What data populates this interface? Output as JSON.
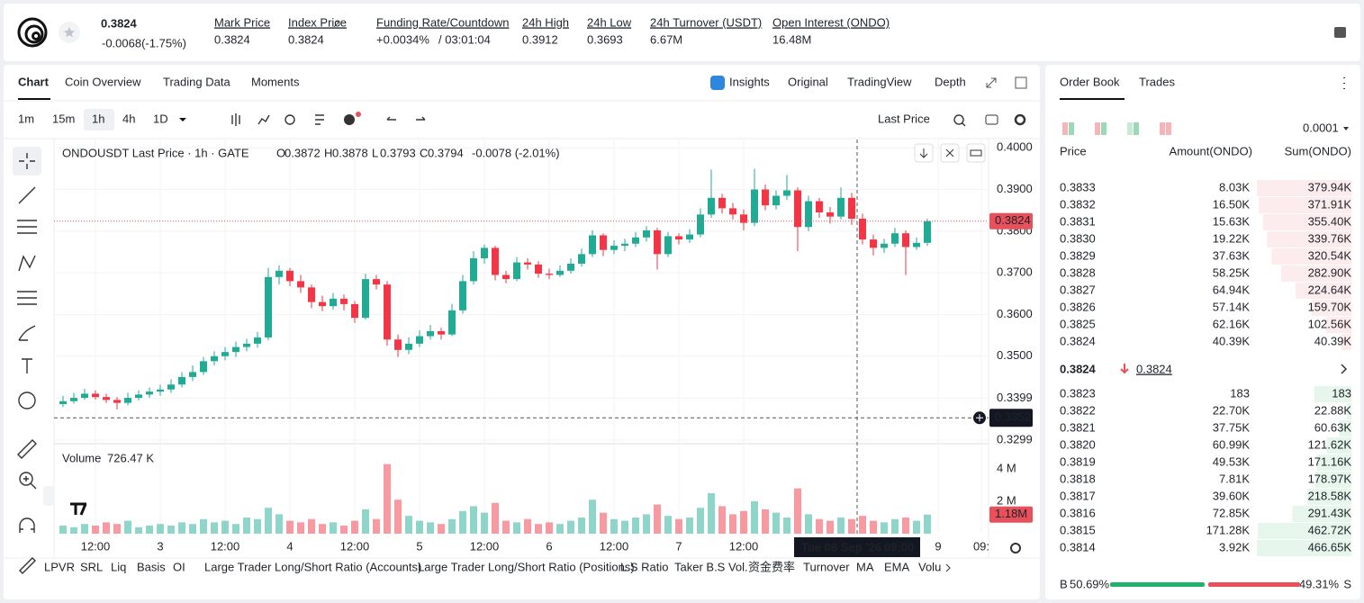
{
  "header": {
    "price": "0.3824",
    "change": "-0.0068(-1.75%)",
    "stats": [
      {
        "label": "Mark Price",
        "value": "0.3824"
      },
      {
        "label": "Index Price",
        "value": "0.3824"
      },
      {
        "label": "Funding Rate/Countdown",
        "value": "+0.0034%",
        "value2": "/ 03:01:04"
      },
      {
        "label": "24h High",
        "value": "0.3912"
      },
      {
        "label": "24h Low",
        "value": "0.3693"
      },
      {
        "label": "24h Turnover (USDT)",
        "value": "6.67M"
      },
      {
        "label": "Open Interest (ONDO)",
        "value": "16.48M"
      }
    ]
  },
  "tabs": {
    "left": [
      "Chart",
      "Coin Overview",
      "Trading Data",
      "Moments"
    ],
    "right": [
      "Insights",
      "Original",
      "TradingView",
      "Depth"
    ]
  },
  "toolbar": {
    "intervals": [
      "1m",
      "15m",
      "1h",
      "4h",
      "1D"
    ],
    "price_type": "Last Price"
  },
  "indicators": [
    "LPVR",
    "SRL",
    "Liq",
    "Basis",
    "OI",
    "Large Trader Long/Short Ratio (Accounts)",
    "Large Trader Long/Short Ratio (Positions)",
    "L.S Ratio",
    "Taker B.S Vol.",
    "资金费率",
    "Turnover",
    "MA",
    "EMA",
    "Volu"
  ],
  "chart_data": {
    "type": "candlestick",
    "title": "ONDOUSDT Last Price · 1h · GATE",
    "legend": [
      {
        "key": "O",
        "value": "0.3872"
      },
      {
        "key": "H",
        "value": "0.3878"
      },
      {
        "key": "L",
        "value": "0.3793"
      },
      {
        "key": "C",
        "value": "0.3794"
      }
    ],
    "legend_change": "-0.0078 (-2.01%)",
    "up_color": "#22ab94",
    "down_color": "#f23645",
    "ylim": [
      0.329,
      0.402
    ],
    "yticks": [
      {
        "value": 0.4,
        "label": "0.4000"
      },
      {
        "value": 0.39,
        "label": "0.3900"
      },
      {
        "value": 0.38,
        "label": "0.3800"
      },
      {
        "value": 0.37,
        "label": "0.3700"
      },
      {
        "value": 0.36,
        "label": "0.3600"
      },
      {
        "value": 0.35,
        "label": "0.3500"
      },
      0.3399,
      0.3299
    ],
    "xticks": [
      {
        "value": 3,
        "label": "12:00"
      },
      {
        "value": 9,
        "label": "3"
      },
      {
        "value": 15,
        "label": "12:00"
      },
      {
        "value": 21,
        "label": "4"
      },
      {
        "value": 27,
        "label": "12:00"
      },
      {
        "value": 33,
        "label": "5"
      },
      {
        "value": 39,
        "label": "12:00"
      },
      {
        "value": 45,
        "label": "6"
      },
      {
        "value": 51,
        "label": "12:00"
      },
      {
        "value": 57,
        "label": "7"
      },
      {
        "value": 63,
        "label": "12:00"
      },
      {
        "value": 81,
        "label": "9"
      },
      {
        "value": 85,
        "label": "09:"
      }
    ],
    "last_price": 0.3824,
    "crosshair": {
      "x": 73.5,
      "date": "Tue 08 Sep '26",
      "time": "09:00",
      "price": 0.3352
    },
    "volume_title": "Volume",
    "volume_legend": "726.47 K",
    "vlim": [
      0,
      5.5
    ],
    "vticks": [
      {
        "value": 4,
        "label": "4 M"
      },
      {
        "value": 2,
        "label": "2 M"
      }
    ],
    "volume_last": {
      "value": 1.18,
      "label": "1.18M"
    },
    "candles": [
      [
        0.3385,
        0.3405,
        0.3378,
        0.3392
      ],
      [
        0.3392,
        0.3412,
        0.3386,
        0.34
      ],
      [
        0.34,
        0.3422,
        0.3395,
        0.341
      ],
      [
        0.341,
        0.3418,
        0.3396,
        0.3402
      ],
      [
        0.3402,
        0.341,
        0.3388,
        0.3395
      ],
      [
        0.3395,
        0.3402,
        0.3372,
        0.3388
      ],
      [
        0.3388,
        0.3412,
        0.3382,
        0.34
      ],
      [
        0.34,
        0.3418,
        0.3394,
        0.3408
      ],
      [
        0.3408,
        0.3425,
        0.34,
        0.3415
      ],
      [
        0.3415,
        0.3432,
        0.3405,
        0.342
      ],
      [
        0.342,
        0.3445,
        0.3412,
        0.3432
      ],
      [
        0.3432,
        0.3462,
        0.3425,
        0.345
      ],
      [
        0.345,
        0.3478,
        0.344,
        0.3462
      ],
      [
        0.3462,
        0.3498,
        0.3455,
        0.3488
      ],
      [
        0.3488,
        0.3512,
        0.3478,
        0.35
      ],
      [
        0.35,
        0.3522,
        0.349,
        0.351
      ],
      [
        0.351,
        0.3535,
        0.3498,
        0.3522
      ],
      [
        0.3522,
        0.3542,
        0.3512,
        0.353
      ],
      [
        0.353,
        0.3558,
        0.352,
        0.3545
      ],
      [
        0.3545,
        0.3712,
        0.3538,
        0.369
      ],
      [
        0.369,
        0.3718,
        0.3672,
        0.3705
      ],
      [
        0.3705,
        0.3712,
        0.3668,
        0.368
      ],
      [
        0.368,
        0.3695,
        0.3652,
        0.3665
      ],
      [
        0.3665,
        0.3672,
        0.3615,
        0.363
      ],
      [
        0.363,
        0.3645,
        0.3608,
        0.362
      ],
      [
        0.362,
        0.3652,
        0.3612,
        0.3638
      ],
      [
        0.3638,
        0.3648,
        0.361,
        0.3625
      ],
      [
        0.3625,
        0.3632,
        0.358,
        0.3592
      ],
      [
        0.3592,
        0.3698,
        0.3588,
        0.3685
      ],
      [
        0.3685,
        0.3695,
        0.366,
        0.3672
      ],
      [
        0.3672,
        0.368,
        0.3525,
        0.354
      ],
      [
        0.354,
        0.3552,
        0.3498,
        0.3515
      ],
      [
        0.3515,
        0.3545,
        0.3505,
        0.353
      ],
      [
        0.353,
        0.3562,
        0.3522,
        0.3548
      ],
      [
        0.3548,
        0.3575,
        0.354,
        0.356
      ],
      [
        0.356,
        0.3568,
        0.354,
        0.3552
      ],
      [
        0.3552,
        0.3625,
        0.3548,
        0.361
      ],
      [
        0.361,
        0.3695,
        0.3602,
        0.368
      ],
      [
        0.368,
        0.3752,
        0.3672,
        0.3735
      ],
      [
        0.3735,
        0.3768,
        0.3722,
        0.376
      ],
      [
        0.376,
        0.3765,
        0.3682,
        0.3695
      ],
      [
        0.3695,
        0.3705,
        0.3675,
        0.3685
      ],
      [
        0.3685,
        0.3738,
        0.368,
        0.3725
      ],
      [
        0.3725,
        0.3735,
        0.3708,
        0.372
      ],
      [
        0.372,
        0.3728,
        0.3688,
        0.3698
      ],
      [
        0.3698,
        0.371,
        0.3685,
        0.3695
      ],
      [
        0.3695,
        0.3718,
        0.369,
        0.3705
      ],
      [
        0.3705,
        0.3735,
        0.3698,
        0.3722
      ],
      [
        0.3722,
        0.3758,
        0.3715,
        0.3745
      ],
      [
        0.3745,
        0.3802,
        0.3738,
        0.379
      ],
      [
        0.379,
        0.3795,
        0.374,
        0.3755
      ],
      [
        0.3755,
        0.3778,
        0.3745,
        0.3765
      ],
      [
        0.3765,
        0.3782,
        0.3752,
        0.377
      ],
      [
        0.377,
        0.3798,
        0.3762,
        0.3785
      ],
      [
        0.3785,
        0.3812,
        0.3775,
        0.3802
      ],
      [
        0.3802,
        0.3808,
        0.3708,
        0.3745
      ],
      [
        0.3745,
        0.3798,
        0.3738,
        0.3788
      ],
      [
        0.3788,
        0.3795,
        0.3768,
        0.378
      ],
      [
        0.378,
        0.3805,
        0.3772,
        0.3792
      ],
      [
        0.3792,
        0.3855,
        0.3785,
        0.384
      ],
      [
        0.384,
        0.3948,
        0.3832,
        0.388
      ],
      [
        0.388,
        0.389,
        0.3842,
        0.3855
      ],
      [
        0.3855,
        0.3868,
        0.3828,
        0.384
      ],
      [
        0.384,
        0.3852,
        0.3802,
        0.382
      ],
      [
        0.382,
        0.395,
        0.3812,
        0.39
      ],
      [
        0.39,
        0.3912,
        0.385,
        0.3862
      ],
      [
        0.3862,
        0.3898,
        0.3852,
        0.3885
      ],
      [
        0.3885,
        0.3935,
        0.3875,
        0.3898
      ],
      [
        0.3898,
        0.3905,
        0.3752,
        0.381
      ],
      [
        0.381,
        0.3885,
        0.38,
        0.3872
      ],
      [
        0.3872,
        0.388,
        0.3832,
        0.3845
      ],
      [
        0.3845,
        0.3858,
        0.3818,
        0.3835
      ],
      [
        0.3835,
        0.3905,
        0.3828,
        0.388
      ],
      [
        0.388,
        0.3892,
        0.3815,
        0.383
      ],
      [
        0.383,
        0.3842,
        0.3768,
        0.378
      ],
      [
        0.378,
        0.3792,
        0.3742,
        0.376
      ],
      [
        0.376,
        0.3782,
        0.3748,
        0.377
      ],
      [
        0.377,
        0.3808,
        0.3762,
        0.3795
      ],
      [
        0.3795,
        0.3802,
        0.3695,
        0.3762
      ],
      [
        0.3762,
        0.3785,
        0.3755,
        0.3772
      ],
      [
        0.3772,
        0.383,
        0.3765,
        0.3824
      ]
    ],
    "volumes": [
      0.5,
      0.4,
      0.6,
      0.5,
      0.7,
      0.6,
      0.8,
      0.4,
      0.5,
      0.6,
      0.5,
      0.7,
      0.6,
      0.9,
      0.7,
      0.8,
      0.6,
      1.0,
      0.9,
      1.6,
      1.2,
      0.8,
      0.7,
      0.9,
      0.6,
      0.7,
      0.5,
      0.8,
      1.5,
      0.9,
      4.3,
      2.1,
      1.1,
      0.8,
      0.7,
      0.6,
      0.9,
      1.4,
      1.7,
      1.3,
      1.9,
      0.8,
      0.7,
      0.9,
      0.6,
      0.7,
      0.6,
      0.8,
      1.0,
      2.1,
      1.3,
      0.9,
      0.8,
      1.0,
      1.2,
      1.8,
      1.1,
      0.9,
      1.0,
      1.6,
      2.5,
      1.7,
      1.2,
      1.4,
      2.0,
      1.5,
      1.3,
      1.0,
      2.8,
      1.2,
      0.9,
      0.8,
      1.0,
      0.9,
      1.1,
      0.8,
      0.7,
      0.9,
      1.0,
      0.8,
      1.18
    ]
  },
  "order_book": {
    "tabs": [
      "Order Book",
      "Trades"
    ],
    "precision": "0.0001",
    "columns": [
      "Price",
      "Amount(ONDO)",
      "Sum(ONDO)"
    ],
    "asks": [
      [
        "0.3833",
        "8.03K",
        "379.94K"
      ],
      [
        "0.3832",
        "16.50K",
        "371.91K"
      ],
      [
        "0.3831",
        "15.63K",
        "355.40K"
      ],
      [
        "0.3830",
        "19.22K",
        "339.76K"
      ],
      [
        "0.3829",
        "37.63K",
        "320.54K"
      ],
      [
        "0.3828",
        "58.25K",
        "282.90K"
      ],
      [
        "0.3827",
        "64.94K",
        "224.64K"
      ],
      [
        "0.3826",
        "57.14K",
        "159.70K"
      ],
      [
        "0.3825",
        "62.16K",
        "102.56K"
      ],
      [
        "0.3824",
        "40.39K",
        "40.39K"
      ]
    ],
    "last": "0.3824",
    "mark": "0.3824",
    "bids": [
      [
        "0.3823",
        "183",
        "183"
      ],
      [
        "0.3822",
        "22.70K",
        "22.88K"
      ],
      [
        "0.3821",
        "37.75K",
        "60.63K"
      ],
      [
        "0.3820",
        "60.99K",
        "121.62K"
      ],
      [
        "0.3819",
        "49.53K",
        "171.16K"
      ],
      [
        "0.3818",
        "7.81K",
        "178.97K"
      ],
      [
        "0.3817",
        "39.60K",
        "218.58K"
      ],
      [
        "0.3816",
        "72.85K",
        "291.43K"
      ],
      [
        "0.3815",
        "171.28K",
        "462.72K"
      ],
      [
        "0.3814",
        "3.92K",
        "466.65K"
      ]
    ],
    "buy_letter": "B",
    "sell_letter": "S",
    "buy": {
      "value": 50.69,
      "label": "50.69%"
    },
    "sell": {
      "value": 49.31,
      "label": "49.31%"
    }
  }
}
